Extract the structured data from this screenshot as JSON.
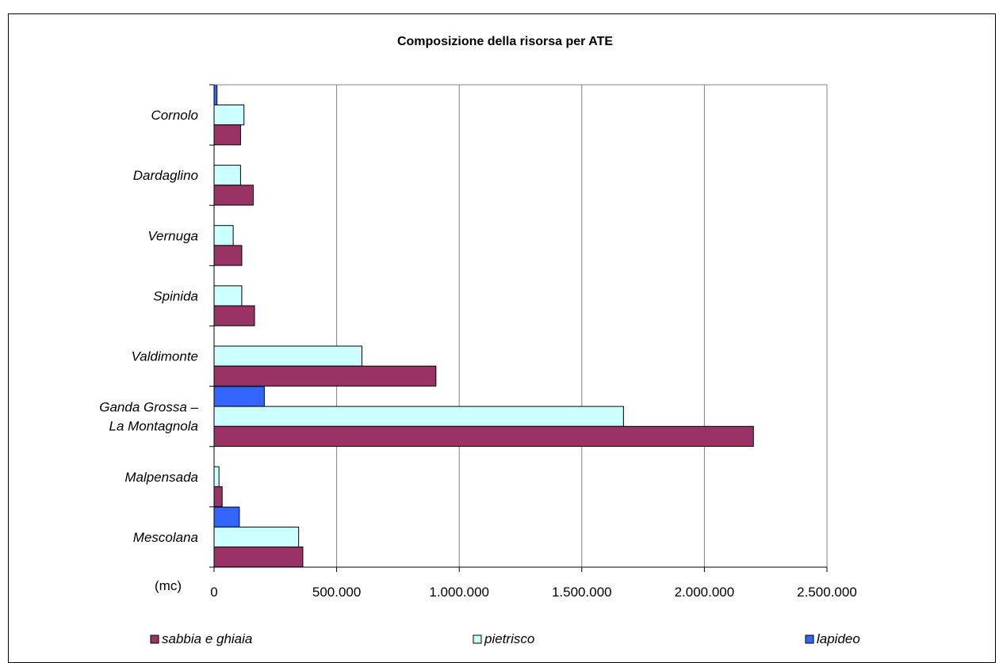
{
  "chart_data": {
    "type": "bar",
    "orientation": "horizontal",
    "title": "Composizione della risorsa per ATE",
    "xlabel": "(mc)",
    "xlim": [
      0,
      2500000
    ],
    "x_ticks": [
      0,
      500000,
      1000000,
      1500000,
      2000000,
      2500000
    ],
    "x_tick_labels": [
      "0",
      "500.000",
      "1.000.000",
      "1.500.000",
      "2.000.000",
      "2.500.000"
    ],
    "grid": "vertical",
    "legend_position": "bottom",
    "categories": [
      [
        "Cornolo"
      ],
      [
        "Dardaglino"
      ],
      [
        "Vernuga"
      ],
      [
        "Spinida"
      ],
      [
        "Valdimonte"
      ],
      [
        "Ganda Grossa –",
        "La Montagnola"
      ],
      [
        "Malpensada"
      ],
      [
        "Mescolana"
      ]
    ],
    "series": [
      {
        "name": "sabbia e ghiaia",
        "color": "#993366",
        "values": [
          108000,
          160000,
          113000,
          165000,
          905000,
          2200000,
          33000,
          362000
        ]
      },
      {
        "name": "pietrisco",
        "color": "#ccffff",
        "values": [
          122000,
          108000,
          78000,
          113000,
          603000,
          1670000,
          20000,
          345000
        ]
      },
      {
        "name": "lapideo",
        "color": "#3366ff",
        "values": [
          12000,
          0,
          0,
          0,
          0,
          205000,
          0,
          103000
        ]
      }
    ]
  }
}
